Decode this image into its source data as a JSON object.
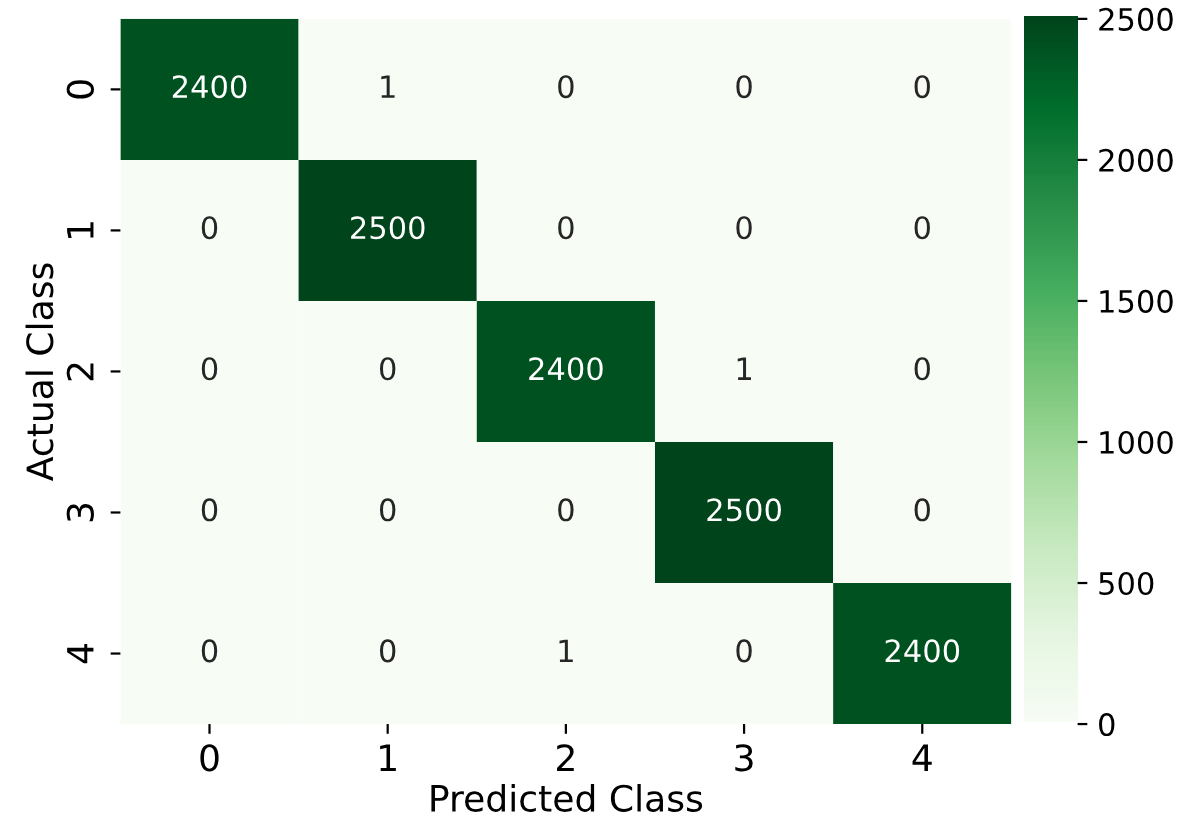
{
  "chart_data": {
    "type": "heatmap",
    "xlabel": "Predicted Class",
    "ylabel": "Actual Class",
    "categories": [
      "0",
      "1",
      "2",
      "3",
      "4"
    ],
    "y_categories": [
      "0",
      "1",
      "2",
      "3",
      "4"
    ],
    "cells": [
      [
        2400,
        1,
        0,
        0,
        0
      ],
      [
        0,
        2500,
        0,
        0,
        0
      ],
      [
        0,
        0,
        2400,
        1,
        0
      ],
      [
        0,
        0,
        0,
        2500,
        0
      ],
      [
        0,
        0,
        1,
        0,
        2400
      ]
    ],
    "clim": [
      0,
      2500
    ],
    "cticks": [
      0,
      500,
      1000,
      1500,
      2000,
      2500
    ],
    "data_labels": true
  }
}
